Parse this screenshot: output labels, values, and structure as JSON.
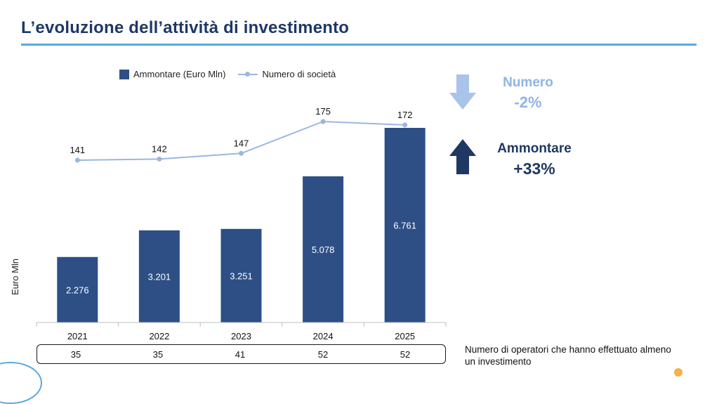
{
  "page": {
    "title": "L’evoluzione dell’attività di investimento"
  },
  "legend": {
    "bars": "Ammontare (Euro Mln)",
    "line": "Numero di società"
  },
  "kpis": {
    "numero": {
      "label": "Numero",
      "value": "-2%",
      "color": "#8fb4e6",
      "direction": "down"
    },
    "ammontare": {
      "label": "Ammontare",
      "value": "+33%",
      "color": "#1f3864",
      "direction": "up"
    }
  },
  "operators": {
    "values": [
      "35",
      "35",
      "41",
      "52",
      "52"
    ],
    "note": "Numero di operatori che hanno effettuato almeno un investimento"
  },
  "colors": {
    "bar": "#2d4f86",
    "line": "#9bb7e0",
    "accent": "#5aa9dc",
    "title": "#1f3864"
  },
  "chart_data": {
    "type": "bar",
    "categories": [
      "2021",
      "2022",
      "2023",
      "2024",
      "2025"
    ],
    "ylabel": "Euro Mln",
    "series": [
      {
        "name": "Ammontare (Euro Mln)",
        "kind": "bar",
        "values": [
          2276,
          3201,
          3251,
          5078,
          6761
        ],
        "labels": [
          "2.276",
          "3.201",
          "3.251",
          "5.078",
          "6.761"
        ]
      },
      {
        "name": "Numero di società",
        "kind": "line",
        "values": [
          141,
          142,
          147,
          175,
          172
        ],
        "labels": [
          "141",
          "142",
          "147",
          "175",
          "172"
        ]
      }
    ]
  }
}
